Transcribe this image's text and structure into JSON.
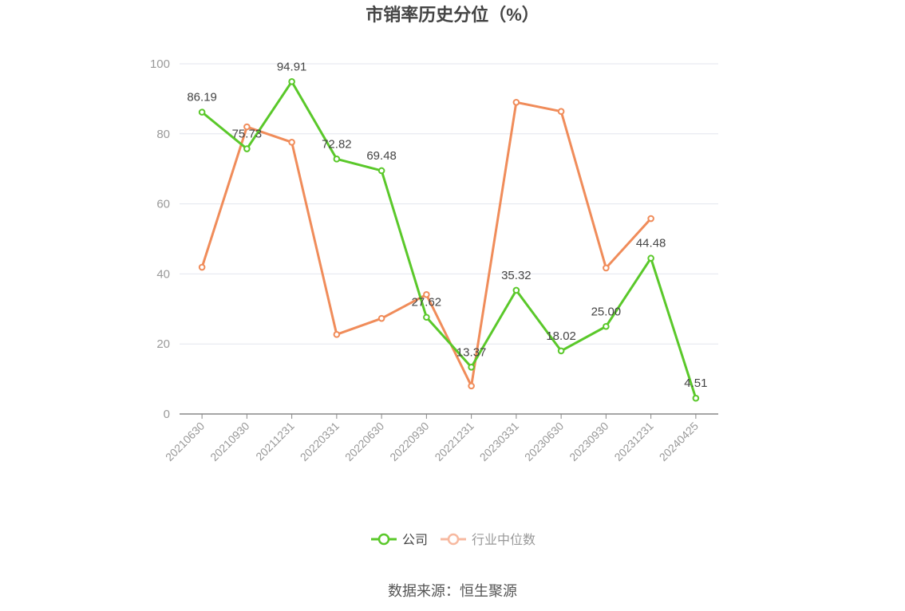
{
  "chart_data": {
    "type": "line",
    "title": "市销率历史分位（%）",
    "categories": [
      "20210630",
      "20210930",
      "20211231",
      "20220331",
      "20220630",
      "20220930",
      "20221231",
      "20230331",
      "20230630",
      "20230930",
      "20231231",
      "20240425"
    ],
    "ylim": [
      0,
      100
    ],
    "yticks": [
      0,
      20,
      40,
      60,
      80,
      100
    ],
    "grid": true,
    "legend_position": "bottom",
    "series": [
      {
        "name": "公司",
        "color": "#5ac82a",
        "values": [
          86.19,
          75.73,
          94.91,
          72.82,
          69.48,
          27.62,
          13.37,
          35.32,
          18.02,
          25.0,
          44.48,
          4.51
        ],
        "labels": [
          "86.19",
          "75.73",
          "94.91",
          "72.82",
          "69.48",
          "27.62",
          "13.37",
          "35.32",
          "18.02",
          "25.00",
          "44.48",
          "4.51"
        ]
      },
      {
        "name": "行业中位数",
        "color": "#f08c5a",
        "values": [
          41.9,
          82.0,
          77.6,
          22.7,
          27.3,
          34.1,
          8.0,
          89.0,
          86.4,
          41.7,
          55.8,
          null
        ]
      }
    ],
    "source": "数据来源：恒生聚源"
  }
}
